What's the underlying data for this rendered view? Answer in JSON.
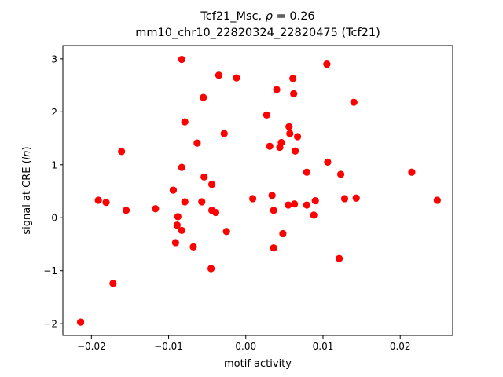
{
  "chart_data": {
    "type": "scatter",
    "title_line1_prefix": "Tcf21_Msc, ",
    "title_rho_symbol": "ρ",
    "title_rho_value": " = 0.26",
    "title_line2": "mm10_chr10_22820324_22820475 (Tcf21)",
    "xlabel": "motif activity",
    "ylabel_prefix": "signal at CRE (",
    "ylabel_italic": "ln",
    "ylabel_suffix": ")",
    "xlim": [
      -0.0237,
      0.0268
    ],
    "ylim": [
      -2.22,
      3.25
    ],
    "xticks": [
      -0.02,
      -0.01,
      0.0,
      0.01,
      0.02
    ],
    "xtick_labels": [
      "−0.02",
      "−0.01",
      "0.00",
      "0.01",
      "0.02"
    ],
    "yticks": [
      -2,
      -1,
      0,
      1,
      2,
      3
    ],
    "ytick_labels": [
      "−2",
      "−1",
      "0",
      "1",
      "2",
      "3"
    ],
    "grid": false,
    "marker_color": "#ff0000",
    "points": [
      {
        "x": -0.0214,
        "y": -1.97
      },
      {
        "x": -0.0191,
        "y": 0.33
      },
      {
        "x": -0.0181,
        "y": 0.29
      },
      {
        "x": -0.0172,
        "y": -1.24
      },
      {
        "x": -0.0161,
        "y": 1.25
      },
      {
        "x": -0.0155,
        "y": 0.14
      },
      {
        "x": -0.0117,
        "y": 0.17
      },
      {
        "x": -0.0094,
        "y": 0.52
      },
      {
        "x": -0.0091,
        "y": -0.47
      },
      {
        "x": -0.0089,
        "y": -0.14
      },
      {
        "x": -0.0088,
        "y": 0.02
      },
      {
        "x": -0.0083,
        "y": 2.99
      },
      {
        "x": -0.0083,
        "y": 0.95
      },
      {
        "x": -0.0083,
        "y": -0.24
      },
      {
        "x": -0.0079,
        "y": 1.81
      },
      {
        "x": -0.0079,
        "y": 0.3
      },
      {
        "x": -0.0068,
        "y": -0.55
      },
      {
        "x": -0.0063,
        "y": 1.41
      },
      {
        "x": -0.0057,
        "y": 0.3
      },
      {
        "x": -0.0055,
        "y": 2.27
      },
      {
        "x": -0.0054,
        "y": 0.77
      },
      {
        "x": -0.0044,
        "y": 0.63
      },
      {
        "x": -0.0045,
        "y": -0.96
      },
      {
        "x": -0.0044,
        "y": 0.14
      },
      {
        "x": -0.0039,
        "y": 0.1
      },
      {
        "x": -0.0035,
        "y": 2.69
      },
      {
        "x": -0.0028,
        "y": 1.59
      },
      {
        "x": -0.0025,
        "y": -0.26
      },
      {
        "x": -0.0012,
        "y": 2.64
      },
      {
        "x": 0.0009,
        "y": 0.36
      },
      {
        "x": 0.0027,
        "y": 1.94
      },
      {
        "x": 0.0031,
        "y": 1.35
      },
      {
        "x": 0.0034,
        "y": 0.42
      },
      {
        "x": 0.0036,
        "y": -0.57
      },
      {
        "x": 0.0036,
        "y": 0.14
      },
      {
        "x": 0.004,
        "y": 2.42
      },
      {
        "x": 0.0044,
        "y": 1.33
      },
      {
        "x": 0.0046,
        "y": 1.42
      },
      {
        "x": 0.0048,
        "y": -0.3
      },
      {
        "x": 0.0055,
        "y": 0.24
      },
      {
        "x": 0.0056,
        "y": 1.72
      },
      {
        "x": 0.0057,
        "y": 1.59
      },
      {
        "x": 0.0061,
        "y": 2.63
      },
      {
        "x": 0.0062,
        "y": 2.34
      },
      {
        "x": 0.0063,
        "y": 0.26
      },
      {
        "x": 0.0064,
        "y": 1.26
      },
      {
        "x": 0.0067,
        "y": 1.53
      },
      {
        "x": 0.0079,
        "y": 0.86
      },
      {
        "x": 0.0079,
        "y": 0.24
      },
      {
        "x": 0.0088,
        "y": 0.05
      },
      {
        "x": 0.009,
        "y": 0.32
      },
      {
        "x": 0.0105,
        "y": 2.9
      },
      {
        "x": 0.0106,
        "y": 1.05
      },
      {
        "x": 0.0121,
        "y": -0.77
      },
      {
        "x": 0.0123,
        "y": 0.82
      },
      {
        "x": 0.0128,
        "y": 0.36
      },
      {
        "x": 0.014,
        "y": 2.18
      },
      {
        "x": 0.0143,
        "y": 0.37
      },
      {
        "x": 0.0215,
        "y": 0.86
      },
      {
        "x": 0.0248,
        "y": 0.33
      }
    ]
  }
}
